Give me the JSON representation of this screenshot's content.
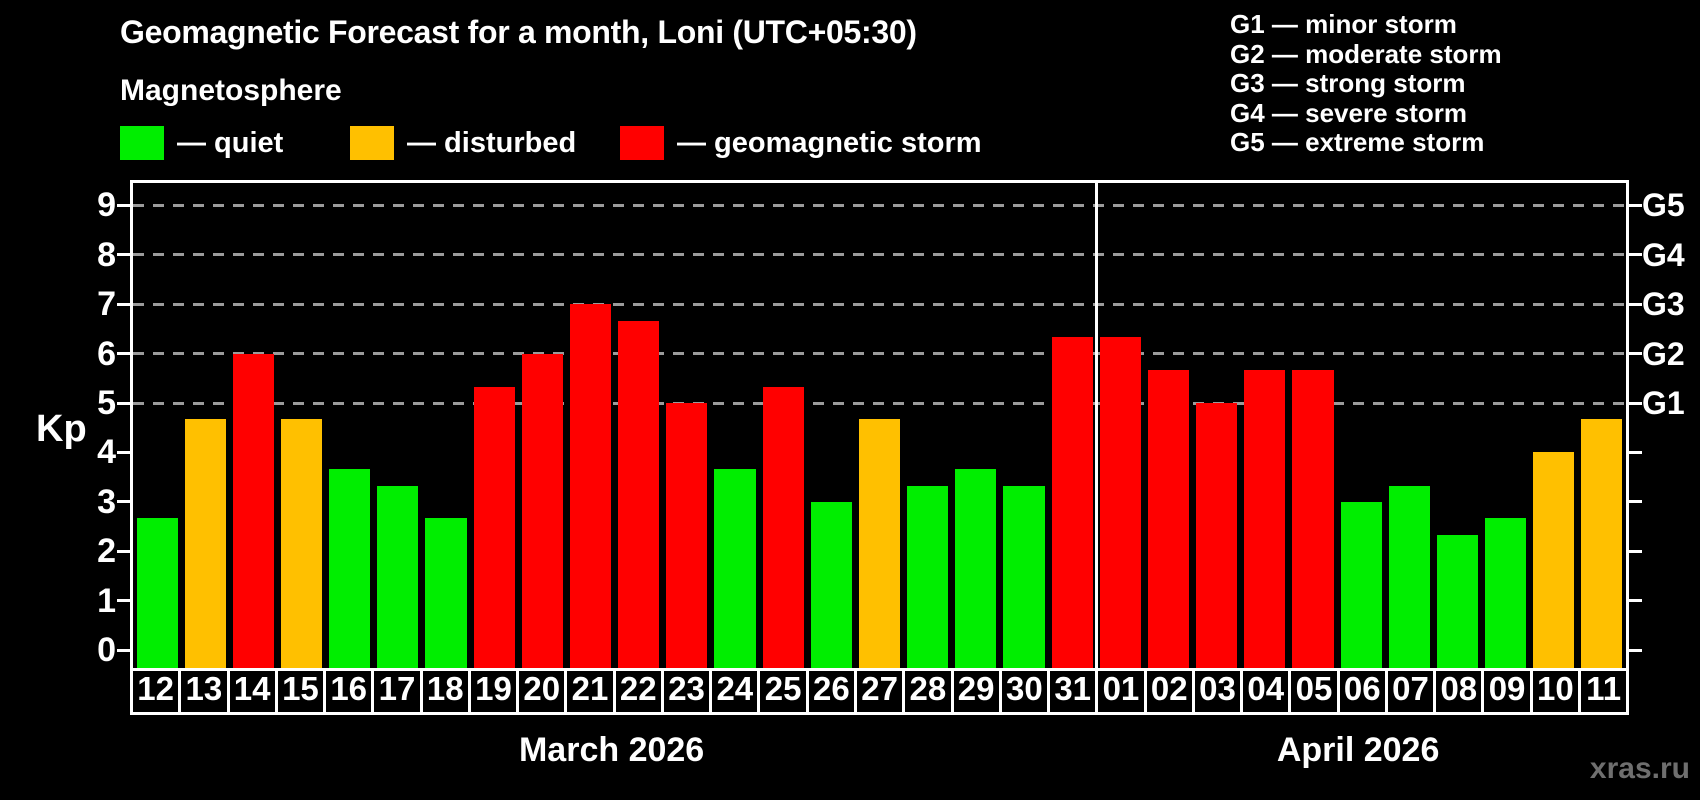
{
  "title": "Geomagnetic Forecast for a month, Loni (UTC+05:30)",
  "subtitle": "Magnetosphere",
  "legend": {
    "items": [
      {
        "key": "quiet",
        "label": "— quiet",
        "color": "#00ee00"
      },
      {
        "key": "disturbed",
        "label": "— disturbed",
        "color": "#ffc000"
      },
      {
        "key": "storm",
        "label": "— geomagnetic storm",
        "color": "#ff0000"
      }
    ]
  },
  "g_legend": [
    "G1 — minor storm",
    "G2 — moderate storm",
    "G3 — strong storm",
    "G4 — severe storm",
    "G5 — extreme storm"
  ],
  "watermark": "xras.ru",
  "chart_data": {
    "type": "bar",
    "ylabel": "Kp",
    "ylim": [
      0,
      9.45
    ],
    "y_ticks": [
      0,
      1,
      2,
      3,
      4,
      5,
      6,
      7,
      8,
      9
    ],
    "grid_levels": [
      5,
      6,
      7,
      8,
      9
    ],
    "grid_color": "#9b9b9b",
    "right_axis_labels": [
      {
        "label": "G1",
        "value": 5
      },
      {
        "label": "G2",
        "value": 6
      },
      {
        "label": "G3",
        "value": 7
      },
      {
        "label": "G4",
        "value": 8
      },
      {
        "label": "G5",
        "value": 9
      }
    ],
    "months": [
      {
        "label": "March 2026",
        "days": 20
      },
      {
        "label": "April 2026",
        "days": 11
      }
    ],
    "categories": [
      "12",
      "13",
      "14",
      "15",
      "16",
      "17",
      "18",
      "19",
      "20",
      "21",
      "22",
      "23",
      "24",
      "25",
      "26",
      "27",
      "28",
      "29",
      "30",
      "31",
      "01",
      "02",
      "03",
      "04",
      "05",
      "06",
      "07",
      "08",
      "09",
      "10",
      "11"
    ],
    "values": [
      2.67,
      4.67,
      6.0,
      4.67,
      3.67,
      3.33,
      2.67,
      5.33,
      6.0,
      7.0,
      6.67,
      5.0,
      3.67,
      5.33,
      3.0,
      4.67,
      3.33,
      3.67,
      3.33,
      6.33,
      6.33,
      5.67,
      5.0,
      5.67,
      5.67,
      3.0,
      3.33,
      2.33,
      2.67,
      4.0,
      4.67
    ],
    "statuses": [
      "quiet",
      "disturbed",
      "storm",
      "disturbed",
      "quiet",
      "quiet",
      "quiet",
      "storm",
      "storm",
      "storm",
      "storm",
      "storm",
      "quiet",
      "storm",
      "quiet",
      "disturbed",
      "quiet",
      "quiet",
      "quiet",
      "storm",
      "storm",
      "storm",
      "storm",
      "storm",
      "storm",
      "quiet",
      "quiet",
      "quiet",
      "quiet",
      "disturbed",
      "disturbed"
    ],
    "colors": {
      "quiet": "#00ee00",
      "disturbed": "#ffc000",
      "storm": "#ff0000"
    }
  }
}
